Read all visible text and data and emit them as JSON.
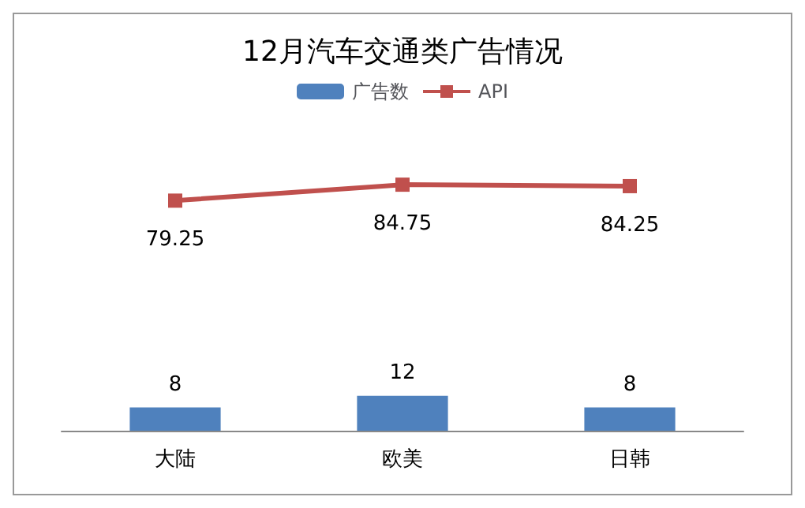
{
  "chart_data": {
    "type": "bar",
    "title": "12月汽车交通类广告情况",
    "categories": [
      "大陆",
      "欧美",
      "日韩"
    ],
    "series": [
      {
        "name": "广告数",
        "color": "#4f81bd",
        "values": [
          8,
          12,
          8
        ]
      },
      {
        "name": "API",
        "type": "line",
        "color": "#c0504d",
        "values": [
          79.25,
          84.75,
          84.25
        ]
      }
    ],
    "data_labels": true,
    "legend": "top",
    "marker": "square",
    "grid": false,
    "tick_labels": "x"
  }
}
